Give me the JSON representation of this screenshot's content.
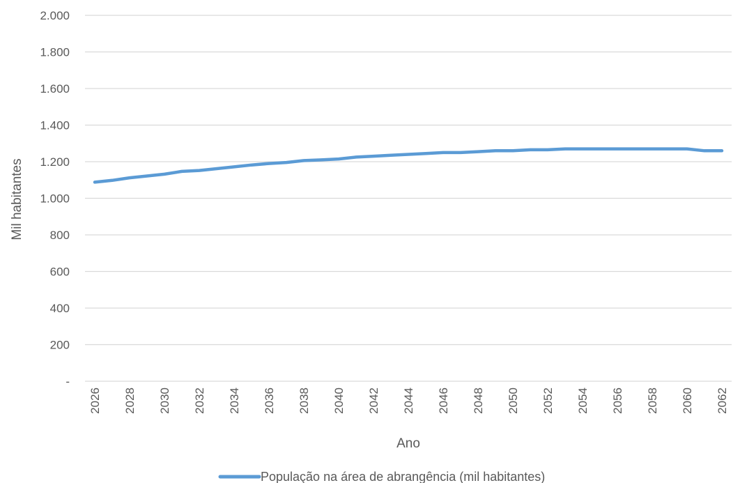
{
  "chart_data": {
    "type": "line",
    "title": "",
    "xlabel": "Ano",
    "ylabel": "Mil habitantes",
    "ylim": [
      0,
      2000
    ],
    "yticks": [
      "-",
      "200",
      "400",
      "600",
      "800",
      "1.000",
      "1.200",
      "1.400",
      "1.600",
      "1.800",
      "2.000"
    ],
    "ytick_values": [
      0,
      200,
      400,
      600,
      800,
      1000,
      1200,
      1400,
      1600,
      1800,
      2000
    ],
    "xtick_labels": [
      "2026",
      "2028",
      "2030",
      "2032",
      "2034",
      "2036",
      "2038",
      "2040",
      "2042",
      "2044",
      "2046",
      "2048",
      "2050",
      "2052",
      "2054",
      "2056",
      "2058",
      "2060",
      "2062"
    ],
    "grid": true,
    "legend_position": "bottom",
    "x": [
      2026,
      2027,
      2028,
      2029,
      2030,
      2031,
      2032,
      2033,
      2034,
      2035,
      2036,
      2037,
      2038,
      2039,
      2040,
      2041,
      2042,
      2043,
      2044,
      2045,
      2046,
      2047,
      2048,
      2049,
      2050,
      2051,
      2052,
      2053,
      2054,
      2055,
      2056,
      2057,
      2058,
      2059,
      2060,
      2061,
      2062
    ],
    "series": [
      {
        "name": "População na área de abrangência (mil habitantes)",
        "color": "#5b9bd5",
        "values": [
          1088,
          1098,
          1112,
          1122,
          1132,
          1147,
          1152,
          1162,
          1172,
          1182,
          1190,
          1196,
          1206,
          1210,
          1215,
          1225,
          1230,
          1235,
          1240,
          1245,
          1250,
          1250,
          1255,
          1260,
          1260,
          1265,
          1265,
          1270,
          1270,
          1270,
          1270,
          1270,
          1270,
          1270,
          1270,
          1260,
          1260
        ]
      }
    ]
  }
}
